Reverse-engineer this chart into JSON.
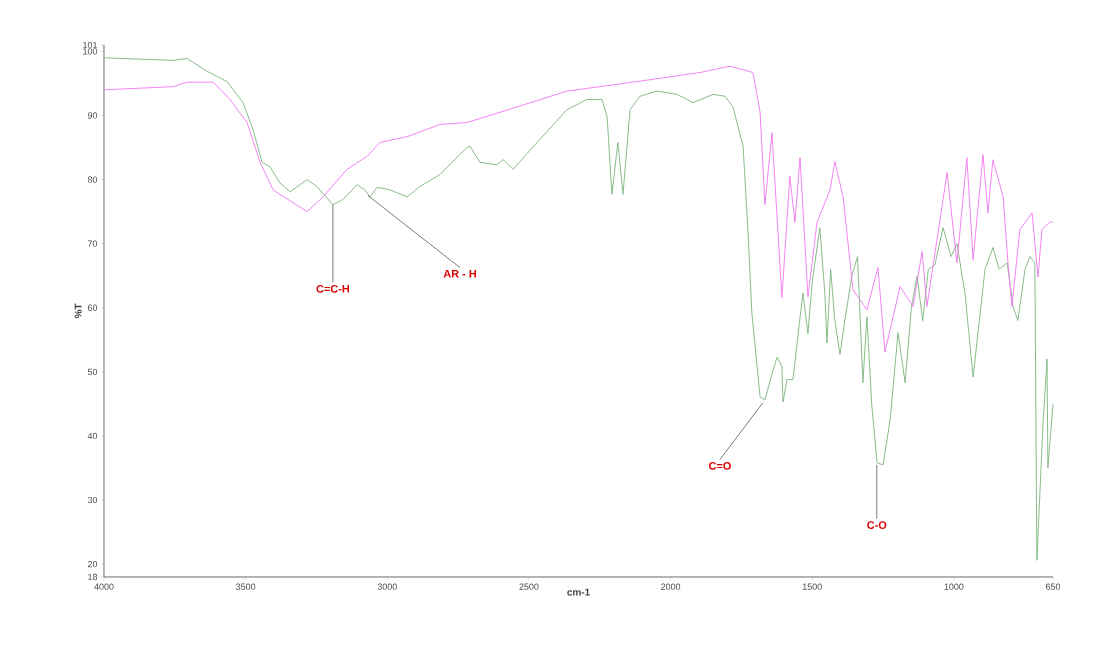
{
  "chart_data": {
    "type": "line",
    "xlabel": "cm-1",
    "ylabel": "%T",
    "xlim": [
      4000,
      650
    ],
    "xticks": [
      4000,
      3500,
      3000,
      2500,
      2000,
      1500,
      1000,
      650
    ],
    "ylim": [
      18,
      101
    ],
    "yticks": [
      18,
      20,
      30,
      40,
      50,
      60,
      70,
      80,
      90,
      100,
      101
    ],
    "series": [
      {
        "color": "#7cb47c",
        "x": [
          4000,
          3756,
          3707,
          3636,
          3566,
          3509,
          3474,
          3442,
          3414,
          3379,
          3343,
          3283,
          3248,
          3192,
          3156,
          3107,
          3079,
          3061,
          3036,
          2990,
          2930,
          2885,
          2814,
          2719,
          2708,
          2673,
          2613,
          2591,
          2556,
          2461,
          2366,
          2295,
          2242,
          2224,
          2207,
          2186,
          2168,
          2143,
          2108,
          2048,
          1977,
          1921,
          1850,
          1808,
          1780,
          1744,
          1727,
          1713,
          1684,
          1667,
          1638,
          1624,
          1607,
          1603,
          1589,
          1568,
          1533,
          1515,
          1500,
          1473,
          1455,
          1448,
          1435,
          1420,
          1402,
          1385,
          1360,
          1340,
          1321,
          1307,
          1290,
          1271,
          1250,
          1225,
          1197,
          1172,
          1150,
          1130,
          1110,
          1090,
          1067,
          1038,
          1010,
          989,
          960,
          932,
          905,
          890,
          862,
          840,
          812,
          790,
          774,
          749,
          731,
          714,
          707,
          685,
          671,
          668,
          650
        ],
        "values": [
          99,
          98.6,
          98.9,
          96.9,
          95.3,
          92,
          87.8,
          82.7,
          82,
          79.5,
          78.1,
          80,
          78.9,
          76.1,
          76.9,
          79.2,
          78.4,
          77.3,
          78.8,
          78.4,
          77.3,
          78.9,
          80.8,
          85,
          85.2,
          82.7,
          82.3,
          83.1,
          81.6,
          86.3,
          90.9,
          92.5,
          92.5,
          89.8,
          77.7,
          85.8,
          77.7,
          90.9,
          93,
          93.8,
          93.3,
          92,
          93.3,
          93,
          91.4,
          85.2,
          72.2,
          59.2,
          46.1,
          45.6,
          50.3,
          52.3,
          50.8,
          45.3,
          48.8,
          48.8,
          62.3,
          56,
          64,
          72.5,
          62,
          54.5,
          66,
          58,
          52.7,
          58,
          65,
          68,
          48.3,
          58.6,
          45,
          35.8,
          35.5,
          42.5,
          56.1,
          48.3,
          60,
          65,
          58,
          66,
          66.7,
          72.5,
          68,
          70,
          62,
          49.2,
          60,
          66,
          69.4,
          66,
          67,
          60,
          58,
          66,
          68,
          67,
          20.6,
          42,
          52,
          35,
          45
        ]
      },
      {
        "color": "#f075f0",
        "x": [
          4000,
          3756,
          3707,
          3615,
          3555,
          3495,
          3449,
          3403,
          3333,
          3283,
          3227,
          3142,
          3072,
          3026,
          2930,
          2814,
          2719,
          2602,
          2366,
          2133,
          1896,
          1790,
          1709,
          1684,
          1667,
          1642,
          1607,
          1579,
          1561,
          1543,
          1515,
          1483,
          1465,
          1437,
          1420,
          1391,
          1356,
          1307,
          1268,
          1243,
          1190,
          1144,
          1112,
          1095,
          1024,
          989,
          954,
          932,
          897,
          880,
          862,
          826,
          809,
          795,
          767,
          724,
          703,
          689,
          661,
          650
        ],
        "values": [
          94,
          94.5,
          95.2,
          95.2,
          92.5,
          88.9,
          82.7,
          78.4,
          76.4,
          75,
          77.3,
          81.6,
          83.6,
          85.8,
          86.7,
          88.6,
          88.9,
          90.5,
          93.8,
          95.2,
          96.7,
          97.7,
          96.7,
          90.5,
          76.1,
          87.3,
          61.6,
          80.5,
          73.3,
          83.4,
          61.7,
          73.3,
          75.3,
          78.4,
          82.8,
          77.3,
          62.8,
          59.7,
          66.3,
          53.1,
          63.3,
          60.2,
          68.8,
          60.2,
          81.1,
          67,
          83.4,
          67.5,
          83.9,
          74.8,
          83.1,
          77.3,
          67,
          60.2,
          72.2,
          74.8,
          64.8,
          72.2,
          73.4,
          73.4
        ]
      }
    ],
    "annotations": [
      {
        "text": "C=C-H",
        "x": 3192,
        "y": 76.1
      },
      {
        "text": "AR - H",
        "x": 3068,
        "y": 77.5
      },
      {
        "text": "C=O",
        "x": 1674,
        "y": 45.2
      },
      {
        "text": "C-O",
        "x": 1272,
        "y": 35.5
      }
    ]
  }
}
